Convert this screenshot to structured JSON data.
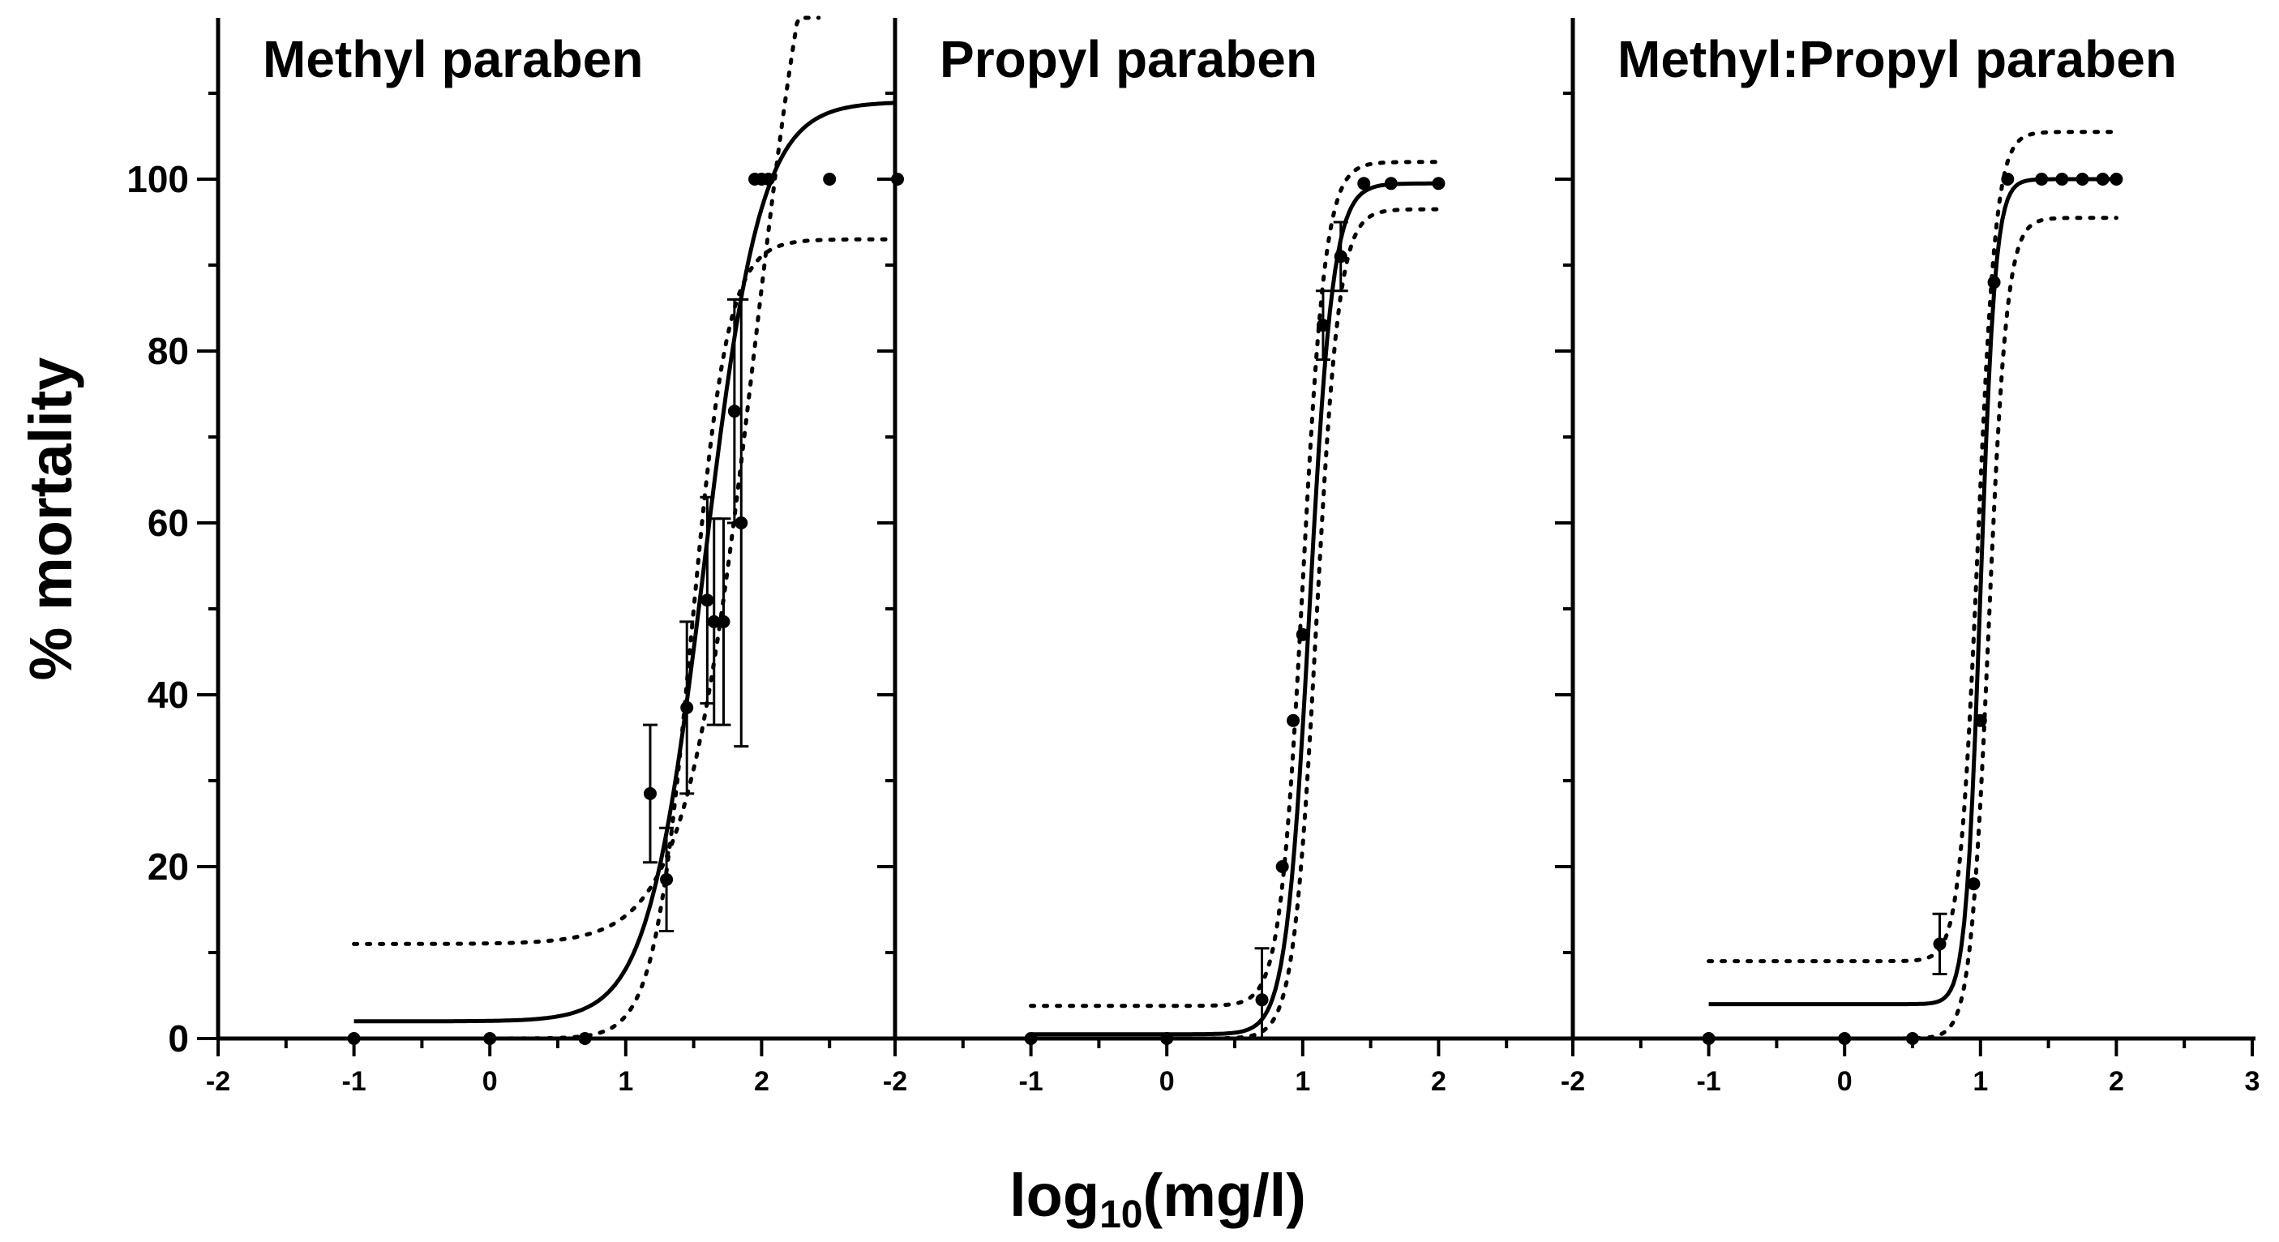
{
  "chart_data": [
    {
      "type": "scatter",
      "title": "Methyl paraben",
      "xlabel": "log10(mg/l)",
      "ylabel": "% mortality",
      "xlim": [
        -2,
        3
      ],
      "ylim": [
        0,
        110
      ],
      "x_ticks": [
        "-2",
        "-1",
        "0",
        "1",
        "2"
      ],
      "y_ticks": [
        "0",
        "20",
        "40",
        "60",
        "80",
        "100"
      ],
      "fit": {
        "bottom": 2,
        "top": 109,
        "logEC50": 1.58,
        "hill": 2.1
      },
      "ci_lower": {
        "bottom": 0,
        "top": 93,
        "logEC50": 1.48,
        "hill": 3.2
      },
      "ci_upper": {
        "bottom": 11,
        "top": 150,
        "logEC50": 1.95,
        "hill": 1.7
      },
      "points": [
        {
          "x": -1.0,
          "y": 0
        },
        {
          "x": 0.0,
          "y": 0
        },
        {
          "x": 0.7,
          "y": 0
        },
        {
          "x": 1.18,
          "y": 28.5,
          "err": 8
        },
        {
          "x": 1.3,
          "y": 18.5,
          "err": 6
        },
        {
          "x": 1.45,
          "y": 38.5,
          "err": 10
        },
        {
          "x": 1.6,
          "y": 51,
          "err": 12
        },
        {
          "x": 1.65,
          "y": 48.5,
          "err": 12
        },
        {
          "x": 1.72,
          "y": 48.5,
          "err": 12
        },
        {
          "x": 1.8,
          "y": 73,
          "err": 13
        },
        {
          "x": 1.85,
          "y": 60,
          "err": 26
        },
        {
          "x": 1.95,
          "y": 100
        },
        {
          "x": 2.0,
          "y": 100
        },
        {
          "x": 2.05,
          "y": 100
        },
        {
          "x": 2.5,
          "y": 100
        },
        {
          "x": 3.0,
          "y": 100
        }
      ]
    },
    {
      "type": "scatter",
      "title": "Propyl paraben",
      "xlabel": "log10(mg/l)",
      "ylabel": "% mortality",
      "xlim": [
        -2,
        3
      ],
      "ylim": [
        0,
        110
      ],
      "x_ticks": [
        "-2",
        "-1",
        "0",
        "1",
        "2"
      ],
      "fit": {
        "bottom": 0.5,
        "top": 99.5,
        "logEC50": 1.05,
        "hill": 5.0
      },
      "ci_lower": {
        "bottom": 0,
        "top": 96.5,
        "logEC50": 1.1,
        "hill": 5.2
      },
      "ci_upper": {
        "bottom": 3.8,
        "top": 102,
        "logEC50": 1.0,
        "hill": 5.2
      },
      "points": [
        {
          "x": -1.0,
          "y": 0
        },
        {
          "x": 0.0,
          "y": 0
        },
        {
          "x": 0.7,
          "y": 4.5,
          "err": 6
        },
        {
          "x": 0.85,
          "y": 20
        },
        {
          "x": 0.93,
          "y": 37
        },
        {
          "x": 1.0,
          "y": 47
        },
        {
          "x": 1.15,
          "y": 83,
          "err": 4
        },
        {
          "x": 1.28,
          "y": 91,
          "err": 4
        },
        {
          "x": 1.45,
          "y": 99.5
        },
        {
          "x": 1.65,
          "y": 99.5
        },
        {
          "x": 2.0,
          "y": 99.5
        }
      ]
    },
    {
      "type": "scatter",
      "title": "Methyl:Propyl paraben",
      "xlabel": "log10(mg/l)",
      "ylabel": "% mortality",
      "xlim": [
        -2,
        3
      ],
      "ylim": [
        0,
        110
      ],
      "x_ticks": [
        "-2",
        "-1",
        "0",
        "1",
        "2",
        "3"
      ],
      "fit": {
        "bottom": 4,
        "top": 100,
        "logEC50": 1.0,
        "hill": 8.0
      },
      "ci_lower": {
        "bottom": 0,
        "top": 95.5,
        "logEC50": 1.06,
        "hill": 6.5
      },
      "ci_upper": {
        "bottom": 9,
        "top": 105.5,
        "logEC50": 0.98,
        "hill": 6.5
      },
      "points": [
        {
          "x": -1.0,
          "y": 0
        },
        {
          "x": 0.0,
          "y": 0
        },
        {
          "x": 0.5,
          "y": 0
        },
        {
          "x": 0.7,
          "y": 11,
          "err": 3.5
        },
        {
          "x": 0.95,
          "y": 18
        },
        {
          "x": 1.0,
          "y": 37
        },
        {
          "x": 1.1,
          "y": 88
        },
        {
          "x": 1.2,
          "y": 100
        },
        {
          "x": 1.45,
          "y": 100
        },
        {
          "x": 1.6,
          "y": 100
        },
        {
          "x": 1.75,
          "y": 100
        },
        {
          "x": 1.9,
          "y": 100
        },
        {
          "x": 2.0,
          "y": 100
        }
      ]
    }
  ],
  "axes": {
    "y_title": "% mortality",
    "x_title_main": "log",
    "x_title_sub": "10",
    "x_title_rest": "(mg/l)"
  }
}
